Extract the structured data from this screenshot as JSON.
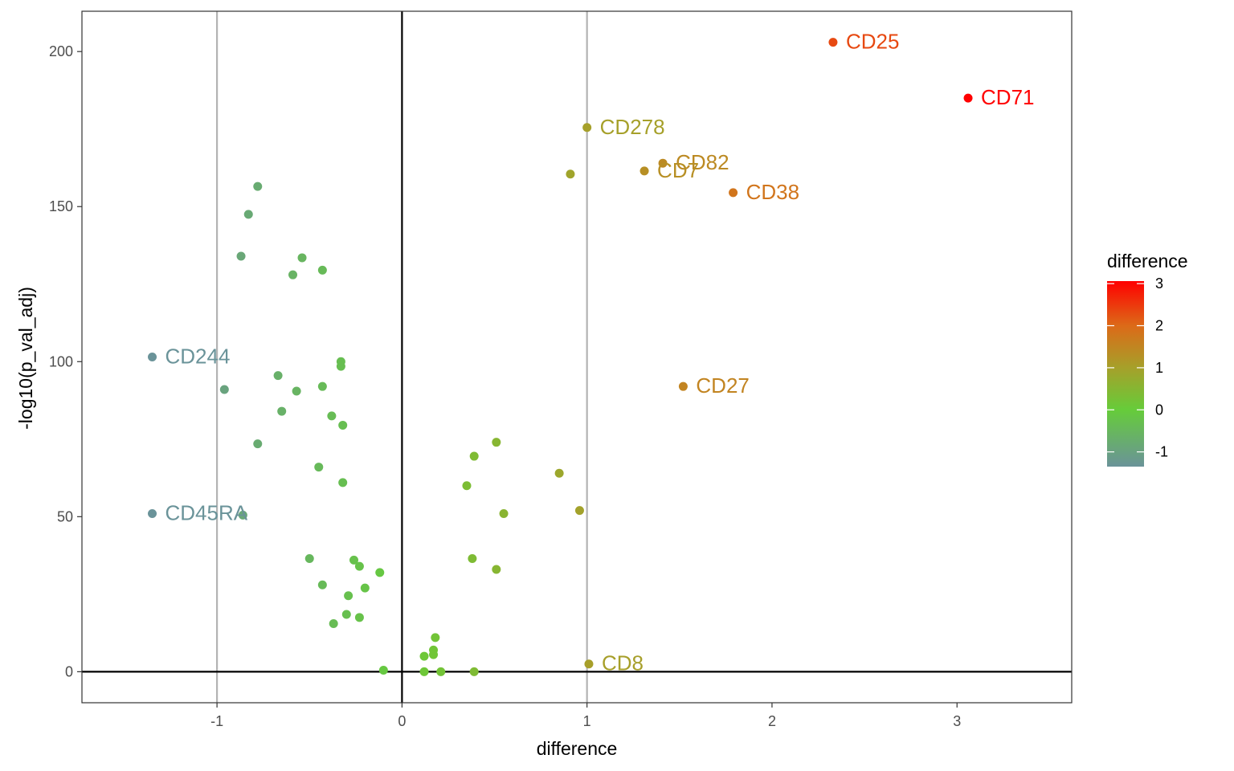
{
  "chart_data": {
    "type": "scatter",
    "xlabel": "difference",
    "ylabel": "-log10(p_val_adj)",
    "xlim": [
      -1.73,
      3.62
    ],
    "ylim": [
      -10,
      213
    ],
    "x_ticks": [
      -1,
      0,
      1,
      2,
      3
    ],
    "y_ticks": [
      0,
      50,
      100,
      150,
      200
    ],
    "reference_lines": {
      "vertical_gray": [
        -1,
        1
      ],
      "vertical_black": [
        0
      ],
      "horizontal_black": [
        0
      ]
    },
    "grid": false,
    "color_scale": {
      "title": "difference",
      "ticks": [
        3,
        2,
        1,
        0,
        -1
      ],
      "range": [
        -1.35,
        3.06
      ],
      "stops": [
        {
          "value": -1.35,
          "color": "#6a9399"
        },
        {
          "value": 0,
          "color": "#66cc3a"
        },
        {
          "value": 1,
          "color": "#a6a02a"
        },
        {
          "value": 2,
          "color": "#dc6a18"
        },
        {
          "value": 3.06,
          "color": "#ff0000"
        }
      ],
      "legend_position": "right"
    },
    "points": [
      {
        "x": 2.33,
        "y": 203,
        "label": "CD25"
      },
      {
        "x": 3.06,
        "y": 185,
        "label": "CD71"
      },
      {
        "x": 1.0,
        "y": 175.5,
        "label": "CD278"
      },
      {
        "x": 1.41,
        "y": 164,
        "label": "CD82"
      },
      {
        "x": 1.31,
        "y": 161.5,
        "label": "CD7"
      },
      {
        "x": 1.79,
        "y": 154.5,
        "label": "CD38"
      },
      {
        "x": 1.52,
        "y": 92,
        "label": "CD27"
      },
      {
        "x": 1.01,
        "y": 2.5,
        "label": "CD8"
      },
      {
        "x": -1.35,
        "y": 101.5,
        "label": "CD244"
      },
      {
        "x": -1.35,
        "y": 51,
        "label": "CD45RA"
      },
      {
        "x": 0.91,
        "y": 160.5,
        "label": ""
      },
      {
        "x": -0.78,
        "y": 156.5,
        "label": ""
      },
      {
        "x": -0.83,
        "y": 147.5,
        "label": ""
      },
      {
        "x": -0.87,
        "y": 134,
        "label": ""
      },
      {
        "x": -0.54,
        "y": 133.5,
        "label": ""
      },
      {
        "x": -0.59,
        "y": 128,
        "label": ""
      },
      {
        "x": -0.43,
        "y": 129.5,
        "label": ""
      },
      {
        "x": -0.33,
        "y": 100,
        "label": ""
      },
      {
        "x": -0.33,
        "y": 98.5,
        "label": ""
      },
      {
        "x": -0.67,
        "y": 95.5,
        "label": ""
      },
      {
        "x": -0.96,
        "y": 91,
        "label": ""
      },
      {
        "x": -0.57,
        "y": 90.5,
        "label": ""
      },
      {
        "x": -0.43,
        "y": 92,
        "label": ""
      },
      {
        "x": -0.65,
        "y": 84,
        "label": ""
      },
      {
        "x": -0.38,
        "y": 82.5,
        "label": ""
      },
      {
        "x": -0.32,
        "y": 79.5,
        "label": ""
      },
      {
        "x": -0.78,
        "y": 73.5,
        "label": ""
      },
      {
        "x": -0.45,
        "y": 66,
        "label": ""
      },
      {
        "x": -0.32,
        "y": 61,
        "label": ""
      },
      {
        "x": -0.86,
        "y": 50.5,
        "label": ""
      },
      {
        "x": -0.5,
        "y": 36.5,
        "label": ""
      },
      {
        "x": -0.26,
        "y": 36,
        "label": ""
      },
      {
        "x": -0.23,
        "y": 34,
        "label": ""
      },
      {
        "x": -0.12,
        "y": 32,
        "label": ""
      },
      {
        "x": -0.43,
        "y": 28,
        "label": ""
      },
      {
        "x": -0.2,
        "y": 27,
        "label": ""
      },
      {
        "x": -0.29,
        "y": 24.5,
        "label": ""
      },
      {
        "x": -0.3,
        "y": 18.5,
        "label": ""
      },
      {
        "x": -0.23,
        "y": 17.5,
        "label": ""
      },
      {
        "x": -0.37,
        "y": 15.5,
        "label": ""
      },
      {
        "x": -0.1,
        "y": 0.5,
        "label": ""
      },
      {
        "x": 0.18,
        "y": 11,
        "label": ""
      },
      {
        "x": 0.17,
        "y": 7,
        "label": ""
      },
      {
        "x": 0.17,
        "y": 5.5,
        "label": ""
      },
      {
        "x": 0.12,
        "y": 5,
        "label": ""
      },
      {
        "x": 0.12,
        "y": 0,
        "label": ""
      },
      {
        "x": 0.21,
        "y": 0,
        "label": ""
      },
      {
        "x": 0.39,
        "y": 0,
        "label": ""
      },
      {
        "x": 0.51,
        "y": 74,
        "label": ""
      },
      {
        "x": 0.39,
        "y": 69.5,
        "label": ""
      },
      {
        "x": 0.35,
        "y": 60,
        "label": ""
      },
      {
        "x": 0.55,
        "y": 51,
        "label": ""
      },
      {
        "x": 0.38,
        "y": 36.5,
        "label": ""
      },
      {
        "x": 0.51,
        "y": 33,
        "label": ""
      },
      {
        "x": 0.85,
        "y": 64,
        "label": ""
      },
      {
        "x": 0.96,
        "y": 52,
        "label": ""
      }
    ]
  }
}
